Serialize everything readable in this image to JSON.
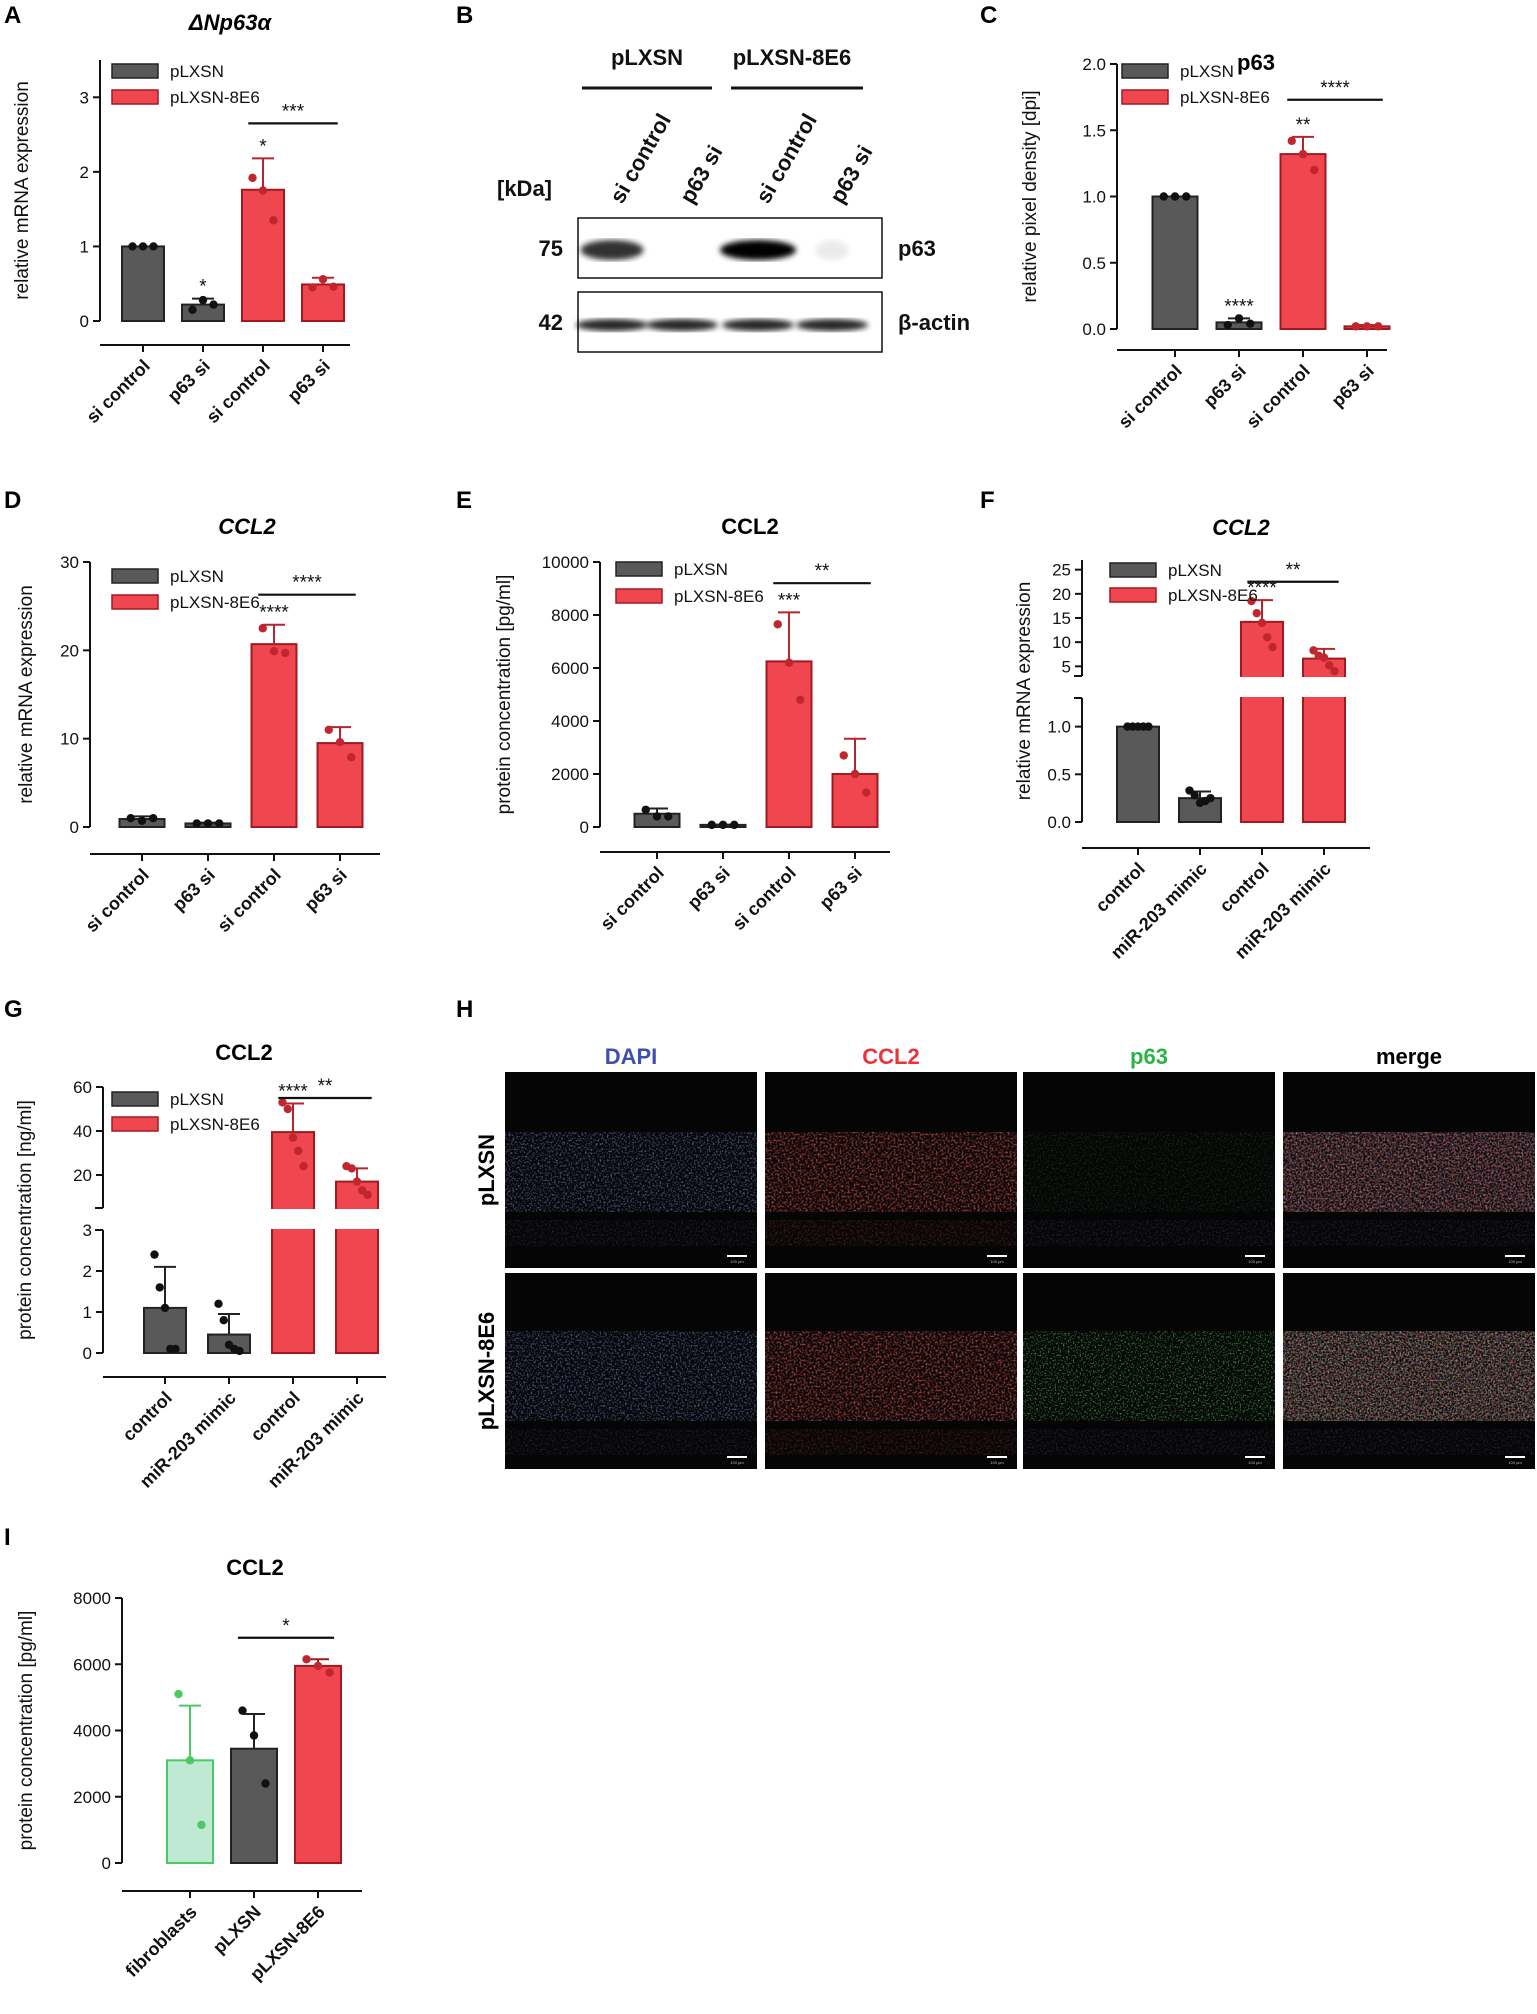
{
  "colors": {
    "gray": "#595959",
    "red": "#f0464f",
    "green": "#4cc964",
    "greenFill": "#bfe9d3"
  },
  "panel_letters": [
    "A",
    "B",
    "C",
    "D",
    "E",
    "F",
    "G",
    "H",
    "I"
  ],
  "legend": {
    "pLXSN": "pLXSN",
    "pLXSN8E6": "pLXSN-8E6"
  },
  "chart_data": [
    {
      "panel": "A",
      "type": "bar",
      "title": "ΔNp63α",
      "title_italic": true,
      "ylabel": "relative mRNA expression",
      "ylim": [
        0,
        3.5
      ],
      "yticks": [
        0,
        1,
        2,
        3
      ],
      "categories": [
        "si control",
        "p63 si",
        "si control",
        "p63 si"
      ],
      "groups": [
        "pLXSN",
        "pLXSN",
        "pLXSN-8E6",
        "pLXSN-8E6"
      ],
      "values": [
        1.0,
        0.22,
        1.76,
        0.49
      ],
      "errors": [
        0.0,
        0.08,
        0.42,
        0.09
      ],
      "points": [
        [
          1.0,
          1.0,
          1.0
        ],
        [
          0.15,
          0.28,
          0.22
        ],
        [
          1.92,
          1.75,
          1.35
        ],
        [
          0.45,
          0.56,
          0.46
        ]
      ],
      "stars": [
        "",
        "*",
        "*",
        ""
      ],
      "brackets": [
        {
          "from": 2,
          "to": 3,
          "label": "***",
          "y": 2.65
        }
      ]
    },
    {
      "panel": "C",
      "type": "bar",
      "title": "p63",
      "title_italic": false,
      "ylabel": "relative pixel density [dpi]",
      "ylim": [
        0,
        2.0
      ],
      "yticks": [
        0.0,
        0.5,
        1.0,
        1.5,
        2.0
      ],
      "ytick_labels": [
        "0.0",
        "0.5",
        "1.0",
        "1.5",
        "2.0"
      ],
      "categories": [
        "si control",
        "p63 si",
        "si control",
        "p63 si"
      ],
      "groups": [
        "pLXSN",
        "pLXSN",
        "pLXSN-8E6",
        "pLXSN-8E6"
      ],
      "values": [
        1.0,
        0.05,
        1.32,
        0.02
      ],
      "errors": [
        0.0,
        0.03,
        0.13,
        0.01
      ],
      "points": [
        [
          1.0,
          1.0,
          1.0
        ],
        [
          0.03,
          0.08,
          0.04
        ],
        [
          1.42,
          1.32,
          1.2
        ],
        [
          0.02,
          0.02,
          0.02
        ]
      ],
      "stars": [
        "",
        "****",
        "**",
        ""
      ],
      "brackets": [
        {
          "from": 2,
          "to": 3,
          "label": "****",
          "y": 1.73
        }
      ]
    },
    {
      "panel": "D",
      "type": "bar",
      "title": "CCL2",
      "title_italic": true,
      "ylabel": "relative mRNA expression",
      "ylim": [
        0,
        30
      ],
      "yticks": [
        0,
        10,
        20,
        30
      ],
      "categories": [
        "si control",
        "p63 si",
        "si control",
        "p63 si"
      ],
      "groups": [
        "pLXSN",
        "pLXSN",
        "pLXSN-8E6",
        "pLXSN-8E6"
      ],
      "values": [
        0.9,
        0.4,
        20.7,
        9.5
      ],
      "errors": [
        0.3,
        0.1,
        2.2,
        1.8
      ],
      "points": [
        [
          1.0,
          0.7,
          1.0
        ],
        [
          0.4,
          0.4,
          0.4
        ],
        [
          22.5,
          19.9,
          19.7
        ],
        [
          11.0,
          9.6,
          7.9
        ]
      ],
      "stars": [
        "",
        "",
        "****",
        ""
      ],
      "brackets": [
        {
          "from": 2,
          "to": 3,
          "label": "****",
          "y": 26.3
        }
      ]
    },
    {
      "panel": "E",
      "type": "bar",
      "title": "CCL2",
      "title_italic": false,
      "ylabel": "protein concentration [pg/ml]",
      "ylim": [
        0,
        10000
      ],
      "yticks": [
        0,
        2000,
        4000,
        6000,
        8000,
        10000
      ],
      "categories": [
        "si control",
        "p63 si",
        "si control",
        "p63 si"
      ],
      "groups": [
        "pLXSN",
        "pLXSN",
        "pLXSN-8E6",
        "pLXSN-8E6"
      ],
      "values": [
        500,
        80,
        6250,
        2000
      ],
      "errors": [
        200,
        10,
        1850,
        1330
      ],
      "points": [
        [
          650,
          400,
          400
        ],
        [
          80,
          80,
          80
        ],
        [
          7650,
          6200,
          4800
        ],
        [
          2700,
          2000,
          1300
        ]
      ],
      "stars": [
        "",
        "",
        "***",
        ""
      ],
      "brackets": [
        {
          "from": 2,
          "to": 3,
          "label": "**",
          "y": 9200
        }
      ]
    },
    {
      "panel": "F",
      "type": "bar",
      "title": "CCL2",
      "title_italic": true,
      "ylabel": "relative mRNA expression",
      "broken_axis": {
        "lower": [
          0,
          1.3
        ],
        "upper": [
          3,
          27
        ],
        "lower_ticks": [
          0.0,
          0.5,
          1.0
        ],
        "upper_ticks": [
          5,
          10,
          15,
          20,
          25
        ]
      },
      "ytick_labels_lower": [
        "0.0",
        "0.5",
        "1.0"
      ],
      "categories": [
        "control",
        "miR-203 mimic",
        "control",
        "miR-203 mimic"
      ],
      "groups": [
        "pLXSN",
        "pLXSN",
        "pLXSN-8E6",
        "pLXSN-8E6"
      ],
      "values": [
        1.0,
        0.25,
        14.2,
        6.6
      ],
      "errors": [
        0.01,
        0.07,
        4.5,
        2.0
      ],
      "points": [
        [
          1.0,
          1.0,
          1.0,
          1.0,
          1.0
        ],
        [
          0.33,
          0.28,
          0.2,
          0.22,
          0.25
        ],
        [
          18.5,
          16.0,
          14.0,
          11.0,
          9.0
        ],
        [
          8.3,
          7.2,
          6.8,
          5.2,
          4.0
        ]
      ],
      "stars": [
        "",
        "",
        "****",
        ""
      ],
      "brackets": [
        {
          "from": 2,
          "to": 3,
          "label": "**",
          "y": 22.5
        }
      ]
    },
    {
      "panel": "G",
      "type": "bar",
      "title": "CCL2",
      "title_italic": false,
      "ylabel": "protein concentration [ng/ml]",
      "broken_axis": {
        "lower": [
          0,
          3
        ],
        "upper": [
          5,
          60
        ],
        "lower_ticks": [
          0,
          1,
          2,
          3
        ],
        "upper_ticks": [
          20,
          40,
          60
        ]
      },
      "categories": [
        "control",
        "miR-203 mimic",
        "control",
        "miR-203 mimic"
      ],
      "groups": [
        "pLXSN",
        "pLXSN",
        "pLXSN-8E6",
        "pLXSN-8E6"
      ],
      "values": [
        1.1,
        0.45,
        39.5,
        17.0
      ],
      "errors": [
        1.0,
        0.5,
        13.0,
        6.0
      ],
      "points": [
        [
          2.4,
          1.6,
          1.1,
          0.1,
          0.1
        ],
        [
          1.2,
          0.8,
          0.2,
          0.1,
          0.05
        ],
        [
          53,
          50,
          37,
          31,
          24
        ],
        [
          24,
          23,
          17,
          13,
          11
        ]
      ],
      "stars": [
        "",
        "",
        "****",
        ""
      ],
      "brackets": [
        {
          "from": 2,
          "to": 3,
          "label": "**",
          "y": 55
        }
      ]
    },
    {
      "panel": "I",
      "type": "bar",
      "title": "CCL2",
      "title_italic": false,
      "ylabel": "protein concentration [pg/ml]",
      "ylim": [
        0,
        8000
      ],
      "yticks": [
        0,
        2000,
        4000,
        6000,
        8000
      ],
      "categories": [
        "fibroblasts",
        "pLXSN",
        "pLXSN-8E6"
      ],
      "values": [
        3100,
        3450,
        5950
      ],
      "errors": [
        1650,
        1050,
        200
      ],
      "points": [
        [
          5100,
          3100,
          1150
        ],
        [
          4600,
          3850,
          2400
        ],
        [
          6150,
          5950,
          5750
        ]
      ],
      "brackets": [
        {
          "from": 1,
          "to": 2,
          "label": "*",
          "y": 6800
        }
      ]
    }
  ],
  "western": {
    "groups": [
      "pLXSN",
      "pLXSN-8E6"
    ],
    "lanes": [
      "si control",
      "p63 si",
      "si control",
      "p63 si"
    ],
    "kda_label": "[kDa]",
    "rows": [
      {
        "kda": "75",
        "label": "p63"
      },
      {
        "kda": "42",
        "label": "β-actin"
      }
    ]
  },
  "microscopy": {
    "columns": [
      {
        "label": "DAPI",
        "color": "#3f4fb0"
      },
      {
        "label": "CCL2",
        "color": "#e8353b"
      },
      {
        "label": "p63",
        "color": "#2bb34a"
      },
      {
        "label": "merge",
        "color": "#000000"
      }
    ],
    "rows": [
      "pLXSN",
      "pLXSN-8E6"
    ],
    "scale_bar": "100 µm"
  }
}
